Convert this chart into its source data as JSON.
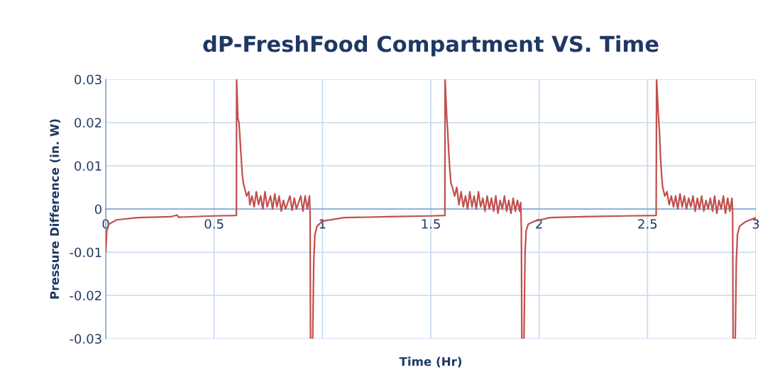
{
  "chart_data": {
    "type": "line",
    "title": "dP-FreshFood Compartment VS. Time",
    "xlabel": "Time (Hr)",
    "ylabel": "Pressure Difference (in. W)",
    "xlim": [
      0,
      3
    ],
    "xticks": [
      0,
      0.5,
      1,
      1.5,
      2,
      2.5,
      3
    ],
    "ylim": [
      -0.03,
      0.03
    ],
    "yticks": [
      -0.03,
      -0.02,
      -0.01,
      0,
      0.01,
      0.02,
      0.03
    ],
    "grid": true,
    "series": [
      {
        "color": "#c0504d",
        "x": [
          0,
          0.005,
          0.015,
          0.05,
          0.15,
          0.3,
          0.33,
          0.335,
          0.5,
          0.6,
          0.603,
          0.604,
          0.61,
          0.615,
          0.62,
          0.625,
          0.63,
          0.635,
          0.64,
          0.65,
          0.66,
          0.665,
          0.675,
          0.685,
          0.695,
          0.705,
          0.715,
          0.725,
          0.735,
          0.745,
          0.76,
          0.77,
          0.78,
          0.79,
          0.8,
          0.81,
          0.82,
          0.83,
          0.85,
          0.86,
          0.87,
          0.88,
          0.9,
          0.91,
          0.92,
          0.93,
          0.94,
          0.943,
          0.945,
          0.955,
          0.96,
          0.965,
          0.975,
          1.0,
          1.1,
          1.3,
          1.5,
          1.565,
          1.566,
          1.574,
          1.578,
          1.583,
          1.588,
          1.593,
          1.6,
          1.61,
          1.62,
          1.63,
          1.64,
          1.65,
          1.66,
          1.67,
          1.68,
          1.69,
          1.7,
          1.71,
          1.72,
          1.73,
          1.74,
          1.75,
          1.76,
          1.77,
          1.78,
          1.79,
          1.8,
          1.81,
          1.82,
          1.83,
          1.84,
          1.85,
          1.86,
          1.87,
          1.88,
          1.89,
          1.9,
          1.91,
          1.915,
          1.918,
          1.92,
          1.93,
          1.935,
          1.94,
          1.95,
          1.98,
          2.05,
          2.2,
          2.4,
          2.54,
          2.542,
          2.55,
          2.555,
          2.56,
          2.565,
          2.57,
          2.575,
          2.58,
          2.59,
          2.6,
          2.61,
          2.62,
          2.63,
          2.64,
          2.65,
          2.66,
          2.67,
          2.68,
          2.69,
          2.7,
          2.71,
          2.72,
          2.73,
          2.74,
          2.75,
          2.76,
          2.77,
          2.78,
          2.79,
          2.8,
          2.81,
          2.82,
          2.83,
          2.84,
          2.85,
          2.86,
          2.87,
          2.88,
          2.89,
          2.893,
          2.895,
          2.905,
          2.91,
          2.915,
          2.925,
          2.95,
          3
        ],
        "values": [
          -0.0098,
          -0.005,
          -0.0035,
          -0.0025,
          -0.002,
          -0.0018,
          -0.0014,
          -0.0019,
          -0.0016,
          -0.0015,
          -0.0015,
          0.03,
          0.021,
          0.02,
          0.016,
          0.012,
          0.008,
          0.006,
          0.005,
          0.003,
          0.004,
          0.001,
          0.003,
          0.0005,
          0.004,
          0.001,
          0.003,
          0.0,
          0.004,
          0.0005,
          0.003,
          0.0,
          0.0035,
          0.0005,
          0.003,
          -0.0005,
          0.002,
          0.0,
          0.003,
          -0.0003,
          0.0025,
          0.0,
          0.003,
          -0.0005,
          0.003,
          0.0,
          0.003,
          -0.001,
          -0.03,
          -0.03,
          -0.012,
          -0.006,
          -0.004,
          -0.0028,
          -0.002,
          -0.0018,
          -0.0016,
          -0.0015,
          0.03,
          0.021,
          0.018,
          0.013,
          0.009,
          0.006,
          0.005,
          0.003,
          0.005,
          0.001,
          0.004,
          0.0005,
          0.003,
          0.0,
          0.004,
          0.0005,
          0.003,
          0.0,
          0.004,
          0.0005,
          0.0025,
          -0.0005,
          0.003,
          0.0,
          0.0025,
          -0.0005,
          0.003,
          -0.001,
          0.002,
          0.0,
          0.003,
          -0.0005,
          0.002,
          -0.001,
          0.0025,
          -0.0005,
          0.002,
          -0.0005,
          0.0015,
          -0.0045,
          -0.03,
          -0.03,
          -0.01,
          -0.005,
          -0.0035,
          -0.0028,
          -0.002,
          -0.0018,
          -0.0016,
          -0.0015,
          0.03,
          0.022,
          0.018,
          0.012,
          0.008,
          0.005,
          0.004,
          0.003,
          0.004,
          0.001,
          0.003,
          0.0005,
          0.003,
          0.0,
          0.0035,
          0.0005,
          0.003,
          0.0,
          0.0025,
          0.0005,
          0.003,
          -0.0005,
          0.0025,
          0.0,
          0.003,
          -0.0005,
          0.002,
          0.0,
          0.0025,
          -0.0005,
          0.003,
          -0.001,
          0.002,
          0.0,
          0.003,
          -0.001,
          0.0025,
          -0.0005,
          0.0025,
          -0.001,
          -0.03,
          -0.03,
          -0.012,
          -0.006,
          -0.004,
          -0.003,
          -0.002
        ]
      }
    ]
  }
}
